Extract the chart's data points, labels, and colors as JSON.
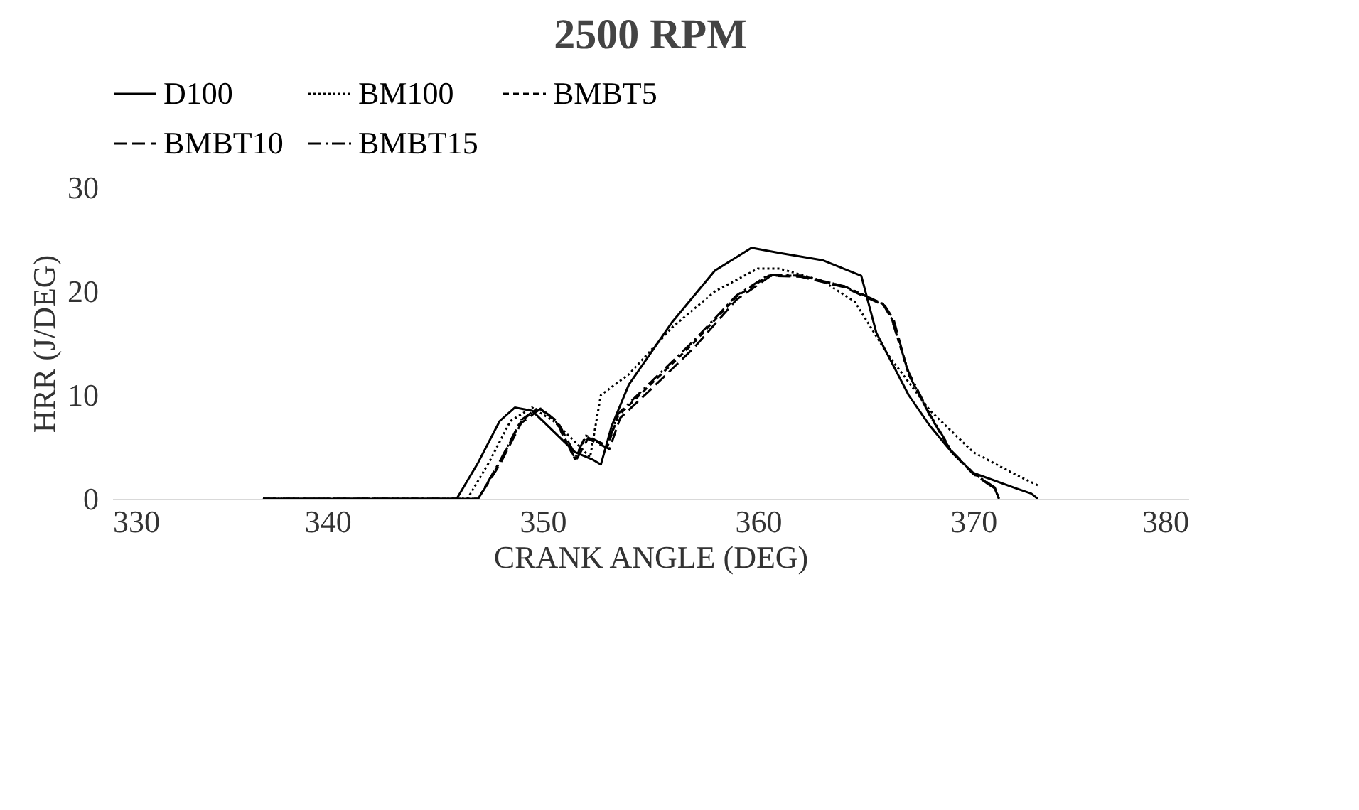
{
  "chart_data": {
    "type": "line",
    "title": "2500 RPM",
    "xlabel": "CRANK ANGLE (DEG)",
    "ylabel": "HRR (J/DEG)",
    "xlim": [
      330,
      380
    ],
    "xticks": [
      330,
      340,
      350,
      360,
      370,
      380
    ],
    "ylim": [
      0,
      30
    ],
    "yticks": [
      0,
      10,
      20,
      30
    ],
    "legend": "top",
    "marker": "none",
    "series": [
      {
        "name": "D100",
        "color": "#000000",
        "line_style": "solid",
        "x": [
          337,
          346,
          347,
          348,
          348.7,
          349.5,
          350.5,
          351.5,
          352.3,
          352.7,
          353.2,
          354,
          356,
          358,
          359.7,
          361,
          363,
          364.8,
          365.5,
          367,
          368,
          369,
          370,
          372,
          372.7,
          373
        ],
        "values": [
          0,
          0,
          3.5,
          7.5,
          8.8,
          8.5,
          6.5,
          4.5,
          3.8,
          3.3,
          7,
          11,
          17,
          22,
          24.2,
          23.7,
          23,
          21.5,
          16,
          10,
          7,
          4.5,
          2.5,
          1,
          0.5,
          0
        ]
      },
      {
        "name": "BM100",
        "color": "#000000",
        "line_style": "dotted",
        "x": [
          337,
          346.5,
          347.5,
          348.5,
          349.5,
          350.5,
          351.5,
          352.2,
          352.7,
          354,
          356,
          358,
          360,
          361,
          363,
          364.5,
          366,
          368,
          370,
          372,
          373
        ],
        "values": [
          0,
          0,
          3.5,
          7.5,
          8.8,
          7.5,
          5.5,
          4,
          10,
          12,
          16.5,
          20,
          22.2,
          22.2,
          21,
          19,
          14,
          8.5,
          4.5,
          2.3,
          1.3
        ]
      },
      {
        "name": "BMBT5",
        "color": "#000000",
        "line_style": "dashed",
        "x": [
          337,
          347,
          348,
          349,
          349.8,
          350.6,
          351.5,
          352,
          353,
          353.5,
          355,
          357,
          359,
          360.5,
          362,
          364,
          365.8,
          366.2,
          367,
          368,
          369,
          370,
          371,
          371.2
        ],
        "values": [
          0,
          0,
          3.5,
          7.5,
          8.8,
          7.5,
          3.8,
          6,
          5,
          8,
          11,
          15,
          19.5,
          21.5,
          21.5,
          20.5,
          18.8,
          17.5,
          12,
          8,
          4.5,
          2.5,
          1,
          0
        ]
      },
      {
        "name": "BMBT10",
        "color": "#000000",
        "line_style": "longdash",
        "x": [
          337,
          347,
          348,
          349,
          349.9,
          350.7,
          351.6,
          352.1,
          353.1,
          353.6,
          355,
          357,
          359,
          360.6,
          362,
          364,
          365.9,
          366.3,
          367,
          368,
          369,
          370,
          371,
          371.2
        ],
        "values": [
          0,
          0,
          3.3,
          7.3,
          8.7,
          7.4,
          3.9,
          5.8,
          4.8,
          7.8,
          10.5,
          14.5,
          19.2,
          21.5,
          21.4,
          20.4,
          18.6,
          17.3,
          12,
          8,
          4.5,
          2.4,
          1,
          0
        ]
      },
      {
        "name": "BMBT15",
        "color": "#000000",
        "line_style": "dashdot",
        "x": [
          337,
          347,
          348,
          349,
          349.8,
          350.6,
          351.5,
          352,
          353,
          353.5,
          355,
          357,
          359,
          360.5,
          362,
          364,
          365.8,
          366.2,
          367,
          368,
          369,
          370,
          371,
          371.2
        ],
        "values": [
          0,
          0,
          3.6,
          7.6,
          8.8,
          7.6,
          3.9,
          6.1,
          5.1,
          8.2,
          11.2,
          15.2,
          19.6,
          21.6,
          21.5,
          20.5,
          18.8,
          17.4,
          12.2,
          8.1,
          4.6,
          2.5,
          1.1,
          0
        ]
      }
    ]
  }
}
